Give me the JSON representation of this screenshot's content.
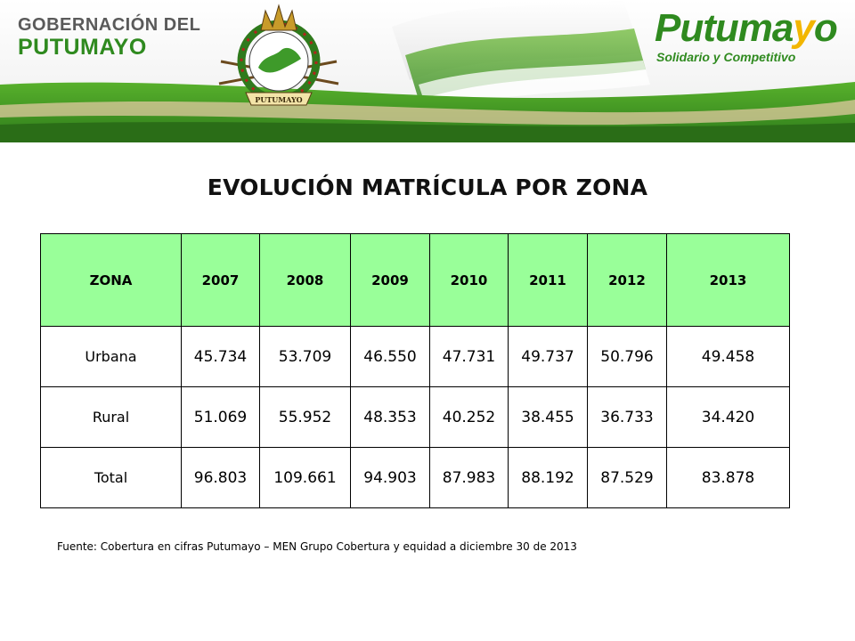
{
  "header": {
    "gobernacion_line1": "GOBERNACIÓN DEL",
    "gobernacion_line2": "PUTUMAYO",
    "emblem_text": "PUTUMAYO",
    "brand_word_main": "Putuma",
    "brand_word_y": "y",
    "brand_word_end": "o",
    "brand_tagline": "Solidario y Competitivo",
    "colors": {
      "green": "#2f8a1f",
      "yellow": "#f2b600",
      "flag_white": "#ffffff"
    }
  },
  "title": "EVOLUCIÓN MATRÍCULA POR ZONA",
  "table": {
    "columns": [
      "ZONA",
      "2007",
      "2008",
      "2009",
      "2010",
      "2011",
      "2012",
      "2013"
    ],
    "rows": [
      [
        "Urbana",
        "45.734",
        "53.709",
        "46.550",
        "47.731",
        "49.737",
        "50.796",
        "49.458"
      ],
      [
        "Rural",
        "51.069",
        "55.952",
        "48.353",
        "40.252",
        "38.455",
        "36.733",
        "34.420"
      ],
      [
        "Total",
        "96.803",
        "109.661",
        "94.903",
        "87.983",
        "88.192",
        "87.529",
        "83.878"
      ]
    ],
    "header_bg": "#99ff99"
  },
  "source": "Fuente: Cobertura en cifras Putumayo – MEN Grupo Cobertura y equidad a diciembre 30 de 2013"
}
